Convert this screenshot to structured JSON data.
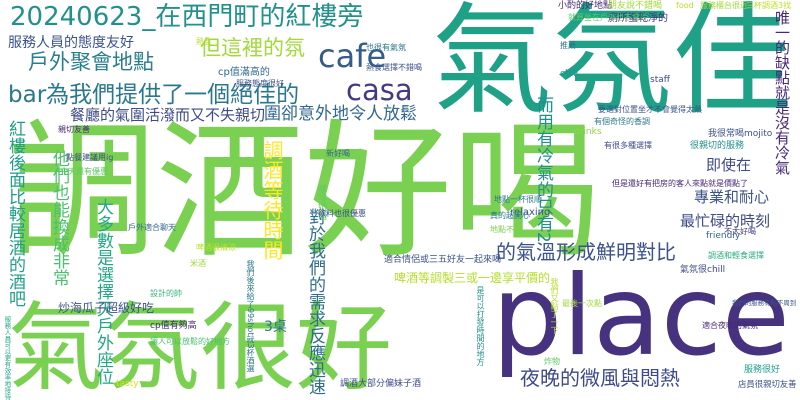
{
  "words": [
    {
      "text": "調酒好喝",
      "color": "#7ad151"
    },
    {
      "text": "place",
      "color": "#46327e"
    },
    {
      "text": "氣氛很好",
      "color": "#7ad151"
    },
    {
      "text": "氣氛佳",
      "color": "#1fa187"
    },
    {
      "text": "20240623_在西門町的紅樓旁",
      "color": "#21918c"
    },
    {
      "text": "服務人員的態度友好",
      "color": "#3b528b"
    },
    {
      "text": "戶外聚會地點",
      "color": "#277f8e"
    },
    {
      "text": "但這裡的氛",
      "color": "#a0da39"
    },
    {
      "text": "cafe",
      "color": "#365c8d"
    },
    {
      "text": "bar為我們提供了一個絕佳的",
      "color": "#2a788e"
    },
    {
      "text": "casa",
      "color": "#443983"
    },
    {
      "text": "餐廳的氣圍活潑而又不失親切",
      "color": "#3e4a89"
    },
    {
      "text": "圍卻意外地令人放鬆",
      "color": "#31688e"
    },
    {
      "text": "cp值滿高的",
      "color": "#31688e"
    },
    {
      "text": "紅樓後面比較居酒的酒吧",
      "color": "#1f9e89"
    },
    {
      "text": "他們也能換成非常",
      "color": "#4ac16d"
    },
    {
      "text": "大多數是選擇天戶外座位",
      "color": "#22a884"
    },
    {
      "text": "炒海瓜子超級好吃",
      "color": "#3b528b"
    },
    {
      "text": "cp值有夠高",
      "color": "#482878"
    },
    {
      "text": "3桌",
      "color": "#2c728e"
    },
    {
      "text": "對於我們的需求反應迅速",
      "color": "#2e6e8e"
    },
    {
      "text": "的氣溫形成鮮明對比",
      "color": "#3b528b"
    },
    {
      "text": "最忙碌的時刻",
      "color": "#3e4a89"
    },
    {
      "text": "專業和耐心",
      "color": "#3b528b"
    },
    {
      "text": "即使在",
      "color": "#3e4a89"
    },
    {
      "text": "而用有冷氣的只有2",
      "color": "#21918c"
    },
    {
      "text": "夜晚的微風與悶熱",
      "color": "#3e4a89"
    },
    {
      "text": "調酒等待時間",
      "color": "#fde725"
    },
    {
      "text": "啤酒等調製三或一邊享平價的",
      "color": "#b5de2b"
    },
    {
      "text": "小酌的好地點",
      "color": "#482878"
    },
    {
      "text": "朋友說不錯喝",
      "color": "#a0da39"
    },
    {
      "text": "廁所蠻乾淨的",
      "color": "#482878"
    },
    {
      "text": "就算坐在戶外也不會冷",
      "color": "#5ec962"
    },
    {
      "text": "food",
      "color": "#bddf26"
    },
    {
      "text": "服務櫃台很近",
      "color": "#a0da39"
    },
    {
      "text": "三杯調酒3找",
      "color": "#bddf26"
    },
    {
      "text": "唯一的缺點就是沒有冷氣",
      "color": "#482878"
    },
    {
      "text": "chill",
      "color": "#21918c"
    },
    {
      "text": "staff",
      "color": "#3e4a89"
    },
    {
      "text": "drinks",
      "color": "#8fd744"
    },
    {
      "text": "relaxing",
      "color": "#3b528b"
    },
    {
      "text": "friendly",
      "color": "#31688e"
    },
    {
      "text": "tasty",
      "color": "#d8e219"
    },
    {
      "text": "氣氛很chill",
      "color": "#3e4a89"
    },
    {
      "text": "服務很好",
      "color": "#1f9e89"
    },
    {
      "text": "調酒和輕食選擇",
      "color": "#26ad81"
    },
    {
      "text": "店員很親切友善",
      "color": "#3b528b"
    },
    {
      "text": "很親切的服務",
      "color": "#21918c"
    },
    {
      "text": "我很常喝mojito",
      "color": "#3b528b"
    },
    {
      "text": "但是還好有把房的客人來點就是價點了",
      "color": "#482878"
    },
    {
      "text": "要選對位置坐才不會覺得太熱",
      "color": "#3b528b"
    },
    {
      "text": "有個奇怪的香調",
      "color": "#2a788e"
    },
    {
      "text": "有很多種選擇",
      "color": "#3e4a89"
    },
    {
      "text": "不太好喝",
      "color": "#443983"
    },
    {
      "text": "我們的服務有點不周到",
      "color": "#3b528b"
    },
    {
      "text": "調酒大部分偏妹子酒",
      "color": "#3e4a89"
    },
    {
      "text": "適合情侶或三五好友一起來喝",
      "color": "#3b528b"
    },
    {
      "text": "咖啡奶酒",
      "color": "#5ec962"
    },
    {
      "text": "真的超開心",
      "color": "#2a788e"
    },
    {
      "text": "地點不錯",
      "color": "#7ad151"
    },
    {
      "text": "地點一杯很順",
      "color": "#2a788e"
    },
    {
      "text": "戶外適合聊天",
      "color": "#31688e"
    },
    {
      "text": "今天還有優惠",
      "color": "#5ec962"
    },
    {
      "text": "親切友善",
      "color": "#482878"
    },
    {
      "text": "熱食",
      "color": "#b5de2b"
    },
    {
      "text": "新好喝",
      "color": "#31688e"
    },
    {
      "text": "米酒",
      "color": "#a0da39"
    },
    {
      "text": "讓人可以放鬆的好地方",
      "color": "#4ac16d"
    },
    {
      "text": "我們後來給了99shot就3杯酒選",
      "color": "#2a788e"
    },
    {
      "text": "服務人員可以更有效率地接待",
      "color": "#22a884"
    },
    {
      "text": "飲料也很優惠",
      "color": "#3e4a89"
    },
    {
      "text": "服務態度很好",
      "color": "#3b528b"
    },
    {
      "text": "也很有氣氛",
      "color": "#2a788e"
    },
    {
      "text": "推薦",
      "color": "#2c728e"
    },
    {
      "text": "炸物",
      "color": "#5ec962"
    },
    {
      "text": "是可以打發時間的地方",
      "color": "#21918c"
    },
    {
      "text": "我們又點了一下",
      "color": "#b5de2b"
    },
    {
      "text": "最後一次點",
      "color": "#a0da39"
    },
    {
      "text": "熱食選擇不錯喝",
      "color": "#3b528b"
    },
    {
      "text": "適合夜晚的氣氛",
      "color": "#482878"
    },
    {
      "text": "設計的帥",
      "color": "#35b779"
    },
    {
      "text": "點餐建議用ig",
      "color": "#3e4a89"
    },
    {
      "text": "啤酒很清涼",
      "color": "#bddf26"
    }
  ]
}
